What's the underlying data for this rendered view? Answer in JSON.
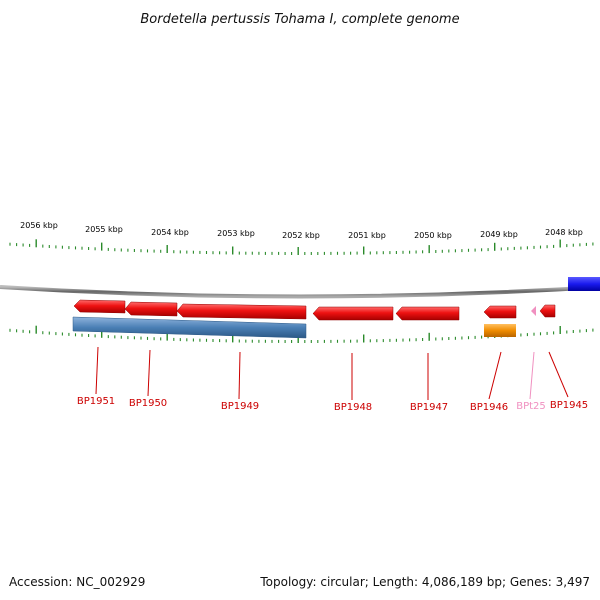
{
  "title": "Bordetella pertussis Tohama I, complete genome",
  "footer": {
    "accession": "Accession: NC_002929",
    "summary": "Topology: circular; Length: 4,086,189 bp; Genes: 3,497"
  },
  "ruler_labels": [
    "2056 kbp",
    "2055 kbp",
    "2054 kbp",
    "2053 kbp",
    "2052 kbp",
    "2051 kbp",
    "2050 kbp",
    "2049 kbp",
    "2048 kbp"
  ],
  "genes": [
    {
      "label": "BP1951",
      "color": "#cc0000"
    },
    {
      "label": "BP1950",
      "color": "#cc0000"
    },
    {
      "label": "BP1949",
      "color": "#cc0000"
    },
    {
      "label": "BP1948",
      "color": "#cc0000"
    },
    {
      "label": "BP1947",
      "color": "#cc0000"
    },
    {
      "label": "BP1946",
      "color": "#cc0000"
    },
    {
      "label": "BPt25",
      "color": "#f090c0"
    },
    {
      "label": "BP1945",
      "color": "#cc0000"
    }
  ],
  "colors": {
    "cds": "#ee1111",
    "gene_bar": "#4a7fb5",
    "trna_bar": "#f08c00",
    "trna": "#f090c0",
    "tick": "#2a8a2a",
    "backbone": "#888888",
    "edge_feature": "#1a1aee"
  }
}
